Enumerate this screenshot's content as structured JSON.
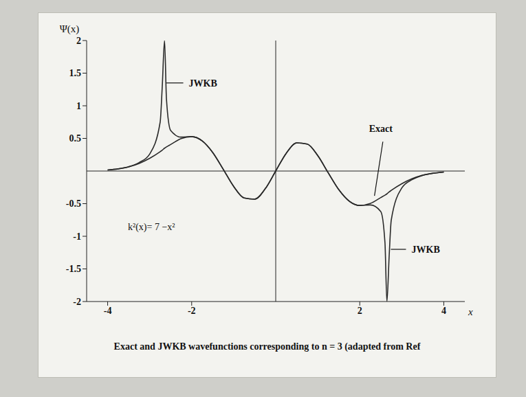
{
  "chart_data": {
    "type": "line",
    "title": "Exact and JWKB wavefunctions corresponding to n = 3 (adapted from Ref",
    "x_label": "x",
    "y_label": "Ψ(x)",
    "x": [
      -4,
      -3.75,
      -3.5,
      -3.25,
      -3,
      -2.75,
      -2.7,
      -2.646,
      -2.6,
      -2.5,
      -2.25,
      -2,
      -1.75,
      -1.5,
      -1.25,
      -1,
      -0.75,
      -0.5,
      -0.25,
      0,
      0.25,
      0.5,
      0.75,
      1,
      1.25,
      1.5,
      1.75,
      2,
      2.25,
      2.5,
      2.6,
      2.646,
      2.7,
      2.75,
      3,
      3.25,
      3.5,
      3.75,
      4
    ],
    "series": [
      {
        "name": "Exact",
        "color": "#2a2a2a",
        "values": [
          0.015,
          0.033,
          0.064,
          0.117,
          0.195,
          0.297,
          0.32,
          0.35,
          0.37,
          0.407,
          0.498,
          0.528,
          0.462,
          0.285,
          0.028,
          -0.237,
          -0.414,
          -0.431,
          -0.272,
          0,
          0.272,
          0.431,
          0.414,
          0.237,
          -0.028,
          -0.285,
          -0.462,
          -0.528,
          -0.498,
          -0.407,
          -0.37,
          -0.35,
          -0.32,
          -0.297,
          -0.195,
          -0.117,
          -0.064,
          -0.033,
          -0.015
        ]
      },
      {
        "name": "JWKB",
        "color": "#2a2a2a",
        "values": [
          0.015,
          0.034,
          0.066,
          0.13,
          0.26,
          0.75,
          1.3,
          2,
          1.1,
          0.62,
          0.52,
          0.528,
          0.462,
          0.285,
          0.028,
          -0.237,
          -0.414,
          -0.431,
          -0.272,
          0,
          0.272,
          0.431,
          0.414,
          0.237,
          -0.028,
          -0.285,
          -0.462,
          -0.528,
          -0.52,
          -0.62,
          -1.1,
          -2,
          -1.3,
          -0.75,
          -0.26,
          -0.13,
          -0.066,
          -0.034,
          -0.015
        ]
      }
    ],
    "xlim": [
      -4.5,
      4.5
    ],
    "xticks": [
      -4,
      -2,
      2,
      4
    ],
    "ylim": [
      -2,
      2
    ],
    "yticks": [
      -2,
      -1.5,
      -1,
      -0.5,
      0.5,
      1,
      1.5,
      2
    ],
    "grid": false,
    "annotations": [
      "JWKB",
      "Exact",
      "JWKB",
      "k²(x)= 7 −x²"
    ]
  }
}
